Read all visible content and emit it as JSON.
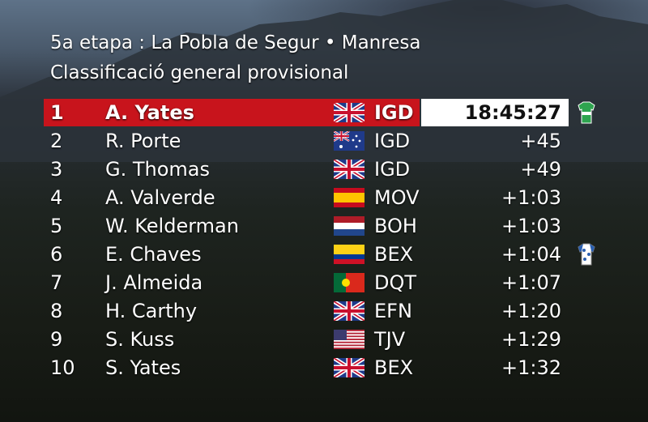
{
  "header": {
    "stage": "5a etapa : La Pobla de Segur • Manresa",
    "title": "Classificació general provisional"
  },
  "table": {
    "rows": [
      [
        "1",
        "A. Yates",
        "IGD",
        "18:45:27"
      ],
      [
        "2",
        "R. Porte",
        "IGD",
        "+45"
      ],
      [
        "3",
        "G. Thomas",
        "IGD",
        "+49"
      ],
      [
        "4",
        "A. Valverde",
        "MOV",
        "+1:03"
      ],
      [
        "5",
        "W. Kelderman",
        "BOH",
        "+1:03"
      ],
      [
        "6",
        "E. Chaves",
        "BEX",
        "+1:04"
      ],
      [
        "7",
        "J. Almeida",
        "DQT",
        "+1:07"
      ],
      [
        "8",
        "H. Carthy",
        "EFN",
        "+1:20"
      ],
      [
        "9",
        "S. Kuss",
        "TJV",
        "+1:29"
      ],
      [
        "10",
        "S. Yates",
        "BEX",
        "+1:32"
      ]
    ]
  }
}
